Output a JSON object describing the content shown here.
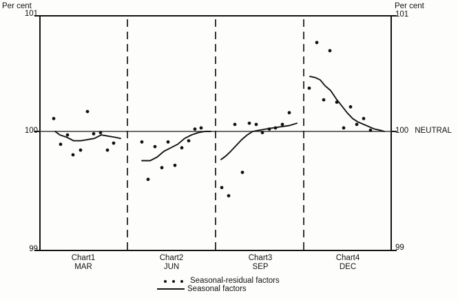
{
  "page": {
    "bg": "#fdfdfc",
    "ink": "#121212"
  },
  "header": {
    "left_axis_title": "Per cent",
    "right_axis_title": "Per cent"
  },
  "axis": {
    "left_ticks": [
      "101",
      "100",
      "99"
    ],
    "right_ticks": [
      "101",
      "100",
      "99"
    ],
    "neutral_label": "NEUTRAL"
  },
  "chart_data": {
    "type": "scatter",
    "title": "",
    "ylabel": "Per cent",
    "ylim": [
      99,
      101
    ],
    "y_ticks": [
      101,
      100,
      99
    ],
    "neutral_value": 100,
    "grid": "off",
    "legend_position": "bottom-center",
    "x_unit": "screen-px (time order within each quarterly panel)",
    "panels": [
      {
        "chart": "Chart1",
        "month": "MAR",
        "dots": [
          [
            78,
            100.11
          ],
          [
            88,
            99.89
          ],
          [
            98,
            99.97
          ],
          [
            106,
            99.8
          ],
          [
            117,
            99.84
          ],
          [
            127,
            100.17
          ],
          [
            136,
            99.98
          ],
          [
            146,
            99.99
          ],
          [
            156,
            99.84
          ],
          [
            165,
            99.9
          ]
        ],
        "curve": [
          [
            80,
            100.0
          ],
          [
            87,
            99.97
          ],
          [
            97,
            99.95
          ],
          [
            107,
            99.92
          ],
          [
            117,
            99.92
          ],
          [
            127,
            99.93
          ],
          [
            137,
            99.94
          ],
          [
            147,
            99.97
          ],
          [
            157,
            99.96
          ],
          [
            167,
            99.95
          ],
          [
            175,
            99.94
          ]
        ]
      },
      {
        "chart": "Chart2",
        "month": "JUN",
        "dots": [
          [
            206,
            99.91
          ],
          [
            215,
            99.59
          ],
          [
            225,
            99.87
          ],
          [
            235,
            99.69
          ],
          [
            244,
            99.91
          ],
          [
            254,
            99.71
          ],
          [
            264,
            99.86
          ],
          [
            274,
            99.92
          ],
          [
            283,
            100.02
          ],
          [
            292,
            100.03
          ]
        ],
        "curve": [
          [
            206,
            99.75
          ],
          [
            218,
            99.75
          ],
          [
            228,
            99.78
          ],
          [
            238,
            99.83
          ],
          [
            248,
            99.86
          ],
          [
            258,
            99.89
          ],
          [
            268,
            99.94
          ],
          [
            278,
            99.97
          ],
          [
            288,
            99.99
          ],
          [
            298,
            100.0
          ],
          [
            306,
            100.0
          ]
        ]
      },
      {
        "chart": "Chart3",
        "month": "SEP",
        "dots": [
          [
            322,
            99.52
          ],
          [
            332,
            99.45
          ],
          [
            341,
            100.06
          ],
          [
            352,
            99.65
          ],
          [
            362,
            100.07
          ],
          [
            372,
            100.06
          ],
          [
            381,
            99.99
          ],
          [
            391,
            100.02
          ],
          [
            400,
            100.03
          ],
          [
            410,
            100.06
          ],
          [
            420,
            100.16
          ]
        ],
        "curve": [
          [
            321,
            99.76
          ],
          [
            328,
            99.79
          ],
          [
            335,
            99.83
          ],
          [
            343,
            99.88
          ],
          [
            351,
            99.93
          ],
          [
            359,
            99.97
          ],
          [
            367,
            100.0
          ],
          [
            376,
            100.01
          ],
          [
            386,
            100.02
          ],
          [
            396,
            100.03
          ],
          [
            408,
            100.04
          ],
          [
            420,
            100.05
          ],
          [
            431,
            100.07
          ]
        ]
      },
      {
        "chart": "Chart4",
        "month": "DEC",
        "dots": [
          [
            449,
            100.37
          ],
          [
            460,
            100.76
          ],
          [
            470,
            100.27
          ],
          [
            479,
            100.69
          ],
          [
            489,
            100.25
          ],
          [
            499,
            100.03
          ],
          [
            509,
            100.21
          ],
          [
            518,
            100.06
          ],
          [
            528,
            100.11
          ],
          [
            538,
            100.01
          ]
        ],
        "curve": [
          [
            450,
            100.47
          ],
          [
            458,
            100.46
          ],
          [
            465,
            100.44
          ],
          [
            472,
            100.39
          ],
          [
            480,
            100.35
          ],
          [
            488,
            100.28
          ],
          [
            496,
            100.22
          ],
          [
            504,
            100.16
          ],
          [
            512,
            100.11
          ],
          [
            520,
            100.08
          ],
          [
            528,
            100.06
          ],
          [
            536,
            100.04
          ],
          [
            544,
            100.02
          ],
          [
            552,
            100.01
          ],
          [
            558,
            100.0
          ]
        ]
      }
    ],
    "legend": [
      {
        "marker": "dots",
        "label": "Seasonal-residual factors"
      },
      {
        "marker": "line",
        "label": "Seasonal factors"
      }
    ]
  }
}
